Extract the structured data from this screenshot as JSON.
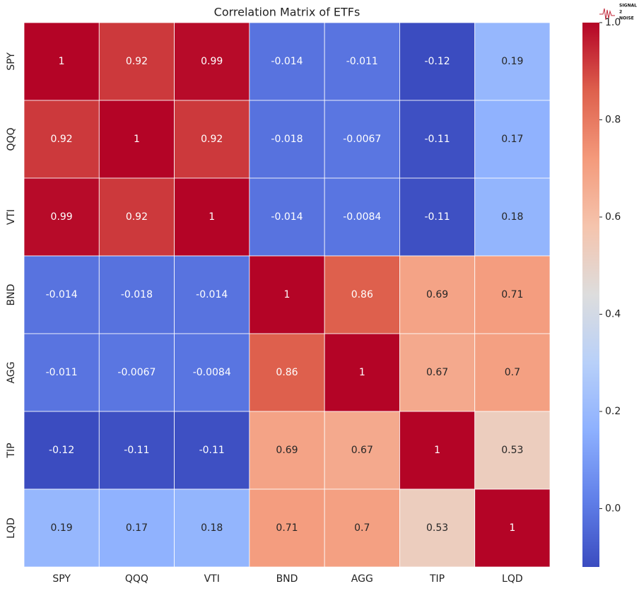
{
  "chart_data": {
    "type": "heatmap",
    "title": "Correlation Matrix of ETFs",
    "x_categories": [
      "SPY",
      "QQQ",
      "VTI",
      "BND",
      "AGG",
      "TIP",
      "LQD"
    ],
    "y_categories": [
      "SPY",
      "QQQ",
      "VTI",
      "BND",
      "AGG",
      "TIP",
      "LQD"
    ],
    "values": [
      [
        1,
        0.92,
        0.99,
        -0.014,
        -0.011,
        -0.12,
        0.19
      ],
      [
        0.92,
        1,
        0.92,
        -0.018,
        -0.0067,
        -0.11,
        0.17
      ],
      [
        0.99,
        0.92,
        1,
        -0.014,
        -0.0084,
        -0.11,
        0.18
      ],
      [
        -0.014,
        -0.018,
        -0.014,
        1,
        0.86,
        0.69,
        0.71
      ],
      [
        -0.011,
        -0.0067,
        -0.0084,
        0.86,
        1,
        0.67,
        0.7
      ],
      [
        -0.12,
        -0.11,
        -0.11,
        0.69,
        0.67,
        1,
        0.53
      ],
      [
        0.19,
        0.17,
        0.18,
        0.71,
        0.7,
        0.53,
        1
      ]
    ],
    "colormap": "coolwarm",
    "clim": [
      -0.12,
      1
    ],
    "cticks": [
      {
        "value": 0,
        "label": "0.0"
      },
      0.2,
      0.4,
      0.6,
      0.8,
      {
        "value": 1,
        "label": "1.0"
      }
    ],
    "logo": [
      "SIGNAL",
      "2",
      "NOISE"
    ]
  }
}
